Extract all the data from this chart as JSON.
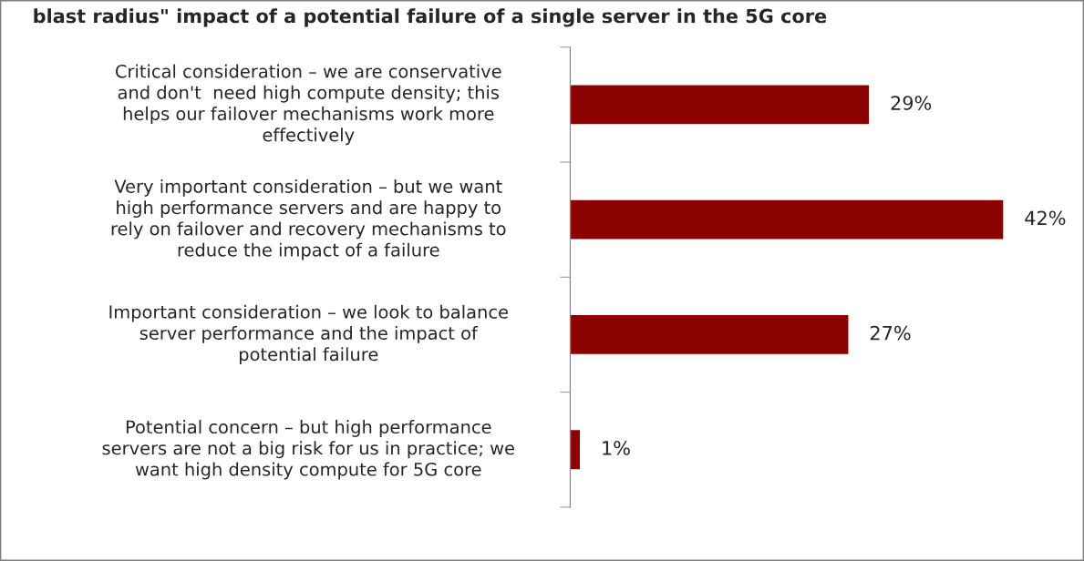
{
  "chart_data": {
    "type": "bar",
    "orientation": "horizontal",
    "title": "blast radius\" impact of a potential failure of a single server in the 5G core",
    "categories": [
      "Critical consideration – we are conservative\nand don't  need high compute density; this\nhelps our failover mechanisms work more\neffectively",
      "Very important consideration – but we want\nhigh performance servers and are happy to\nrely on failover and recovery mechanisms to\nreduce the impact of a failure",
      "Important consideration – we look to balance\nserver performance and the impact of\npotential failure",
      "Potential concern – but high performance\nservers are not a big risk for us in practice; we\nwant high density compute for 5G core"
    ],
    "values": [
      29,
      42,
      27,
      1
    ],
    "value_labels": [
      "29%",
      "42%",
      "27%",
      "1%"
    ],
    "color": "#8b0000",
    "tick_labels": "y"
  }
}
